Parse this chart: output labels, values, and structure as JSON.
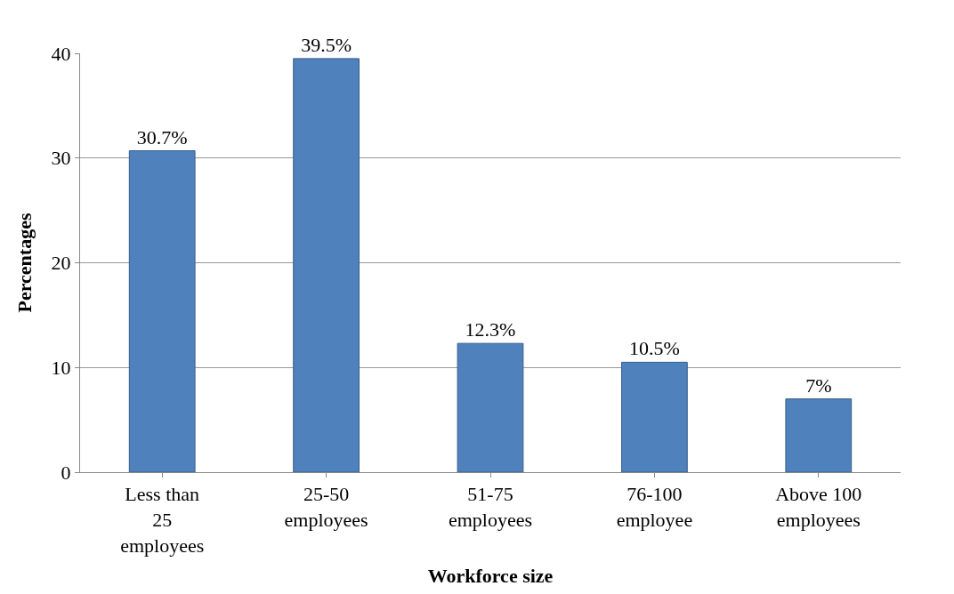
{
  "chart_data": {
    "type": "bar",
    "xlabel": "Workforce size",
    "ylabel": "Percentages",
    "categories": [
      "Less than 25 employees",
      "25-50 employees",
      "51-75 employees",
      "76-100 employee",
      "Above 100 employees"
    ],
    "values": [
      30.7,
      39.5,
      12.3,
      10.5,
      7
    ],
    "value_labels": [
      "30.7%",
      "39.5%",
      "12.3%",
      "10.5%",
      "7%"
    ],
    "color": "#4f81bd",
    "ylim": [
      0,
      40
    ],
    "yticks": [
      0,
      10,
      20,
      30,
      40
    ],
    "grid": "y",
    "legend": false
  }
}
